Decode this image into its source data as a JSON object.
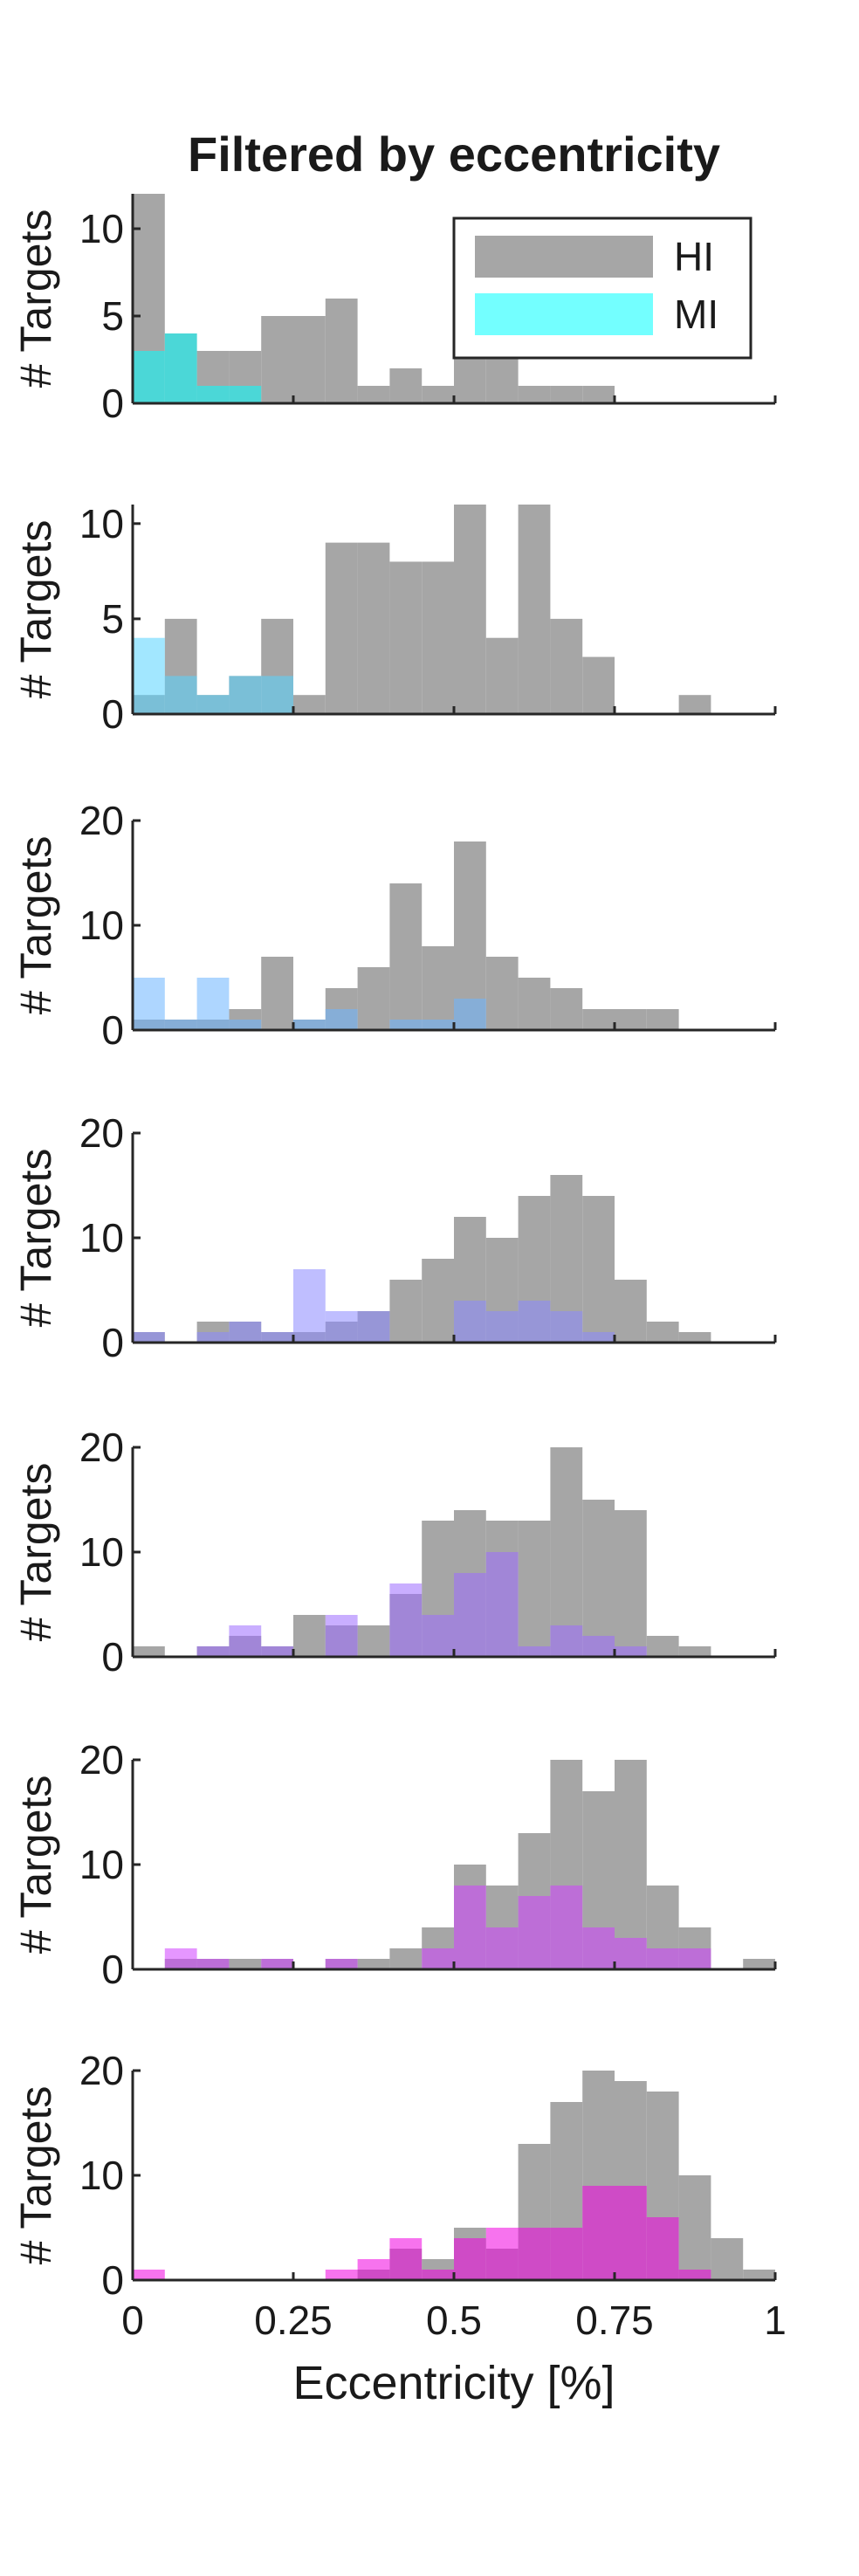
{
  "chart_data": {
    "type": "bar",
    "title": "Filtered by eccentricity",
    "xlabel": "Eccentricity [%]",
    "ylabel": "# Targets",
    "xlim": [
      0,
      1
    ],
    "x_ticks": [
      "0",
      "0.25",
      "0.5",
      "0.75",
      "1"
    ],
    "bin_width": 0.05,
    "bin_starts": [
      0,
      0.05,
      0.1,
      0.15,
      0.2,
      0.25,
      0.3,
      0.35,
      0.4,
      0.45,
      0.5,
      0.55,
      0.6,
      0.65,
      0.7,
      0.75,
      0.8,
      0.85,
      0.9,
      0.95
    ],
    "legend": {
      "position": "top-right",
      "entries": [
        "HI",
        "MI"
      ]
    },
    "hi_color": "#a6a6a6",
    "mi_alpha": 0.55,
    "panels": [
      {
        "ylim": [
          0,
          12
        ],
        "yticks": [
          0,
          5,
          10
        ],
        "mi_color": "#00ffff",
        "series": [
          {
            "name": "HI",
            "values": [
              12,
              4,
              3,
              3,
              5,
              5,
              6,
              1,
              2,
              1,
              3,
              3,
              1,
              1,
              1,
              0,
              0,
              0,
              0,
              0
            ]
          },
          {
            "name": "MI",
            "values": [
              3,
              4,
              1,
              1,
              0,
              0,
              0,
              0,
              0,
              0,
              0,
              0,
              0,
              0,
              0,
              0,
              0,
              0,
              0,
              0
            ]
          }
        ]
      },
      {
        "ylim": [
          0,
          11
        ],
        "yticks": [
          0,
          5,
          10
        ],
        "mi_color": "#55d4ff",
        "series": [
          {
            "name": "HI",
            "values": [
              1,
              5,
              1,
              2,
              5,
              1,
              9,
              9,
              8,
              8,
              11,
              4,
              11,
              5,
              3,
              0,
              0,
              1,
              0,
              0
            ]
          },
          {
            "name": "MI",
            "values": [
              4,
              2,
              1,
              2,
              2,
              0,
              0,
              0,
              0,
              0,
              0,
              0,
              0,
              0,
              0,
              0,
              0,
              0,
              0,
              0
            ]
          }
        ]
      },
      {
        "ylim": [
          0,
          20
        ],
        "yticks": [
          0,
          10,
          20
        ],
        "mi_color": "#6cb4ff",
        "series": [
          {
            "name": "HI",
            "values": [
              1,
              1,
              1,
              2,
              7,
              1,
              4,
              6,
              14,
              8,
              18,
              7,
              5,
              4,
              2,
              2,
              2,
              0,
              0,
              0
            ]
          },
          {
            "name": "MI",
            "values": [
              5,
              1,
              5,
              1,
              0,
              1,
              2,
              0,
              1,
              1,
              3,
              0,
              0,
              0,
              0,
              0,
              0,
              0,
              0,
              0
            ]
          }
        ]
      },
      {
        "ylim": [
          0,
          20
        ],
        "yticks": [
          0,
          10,
          20
        ],
        "mi_color": "#8b88ff",
        "series": [
          {
            "name": "HI",
            "values": [
              1,
              0,
              2,
              2,
              1,
              1,
              2,
              3,
              6,
              8,
              12,
              10,
              14,
              16,
              14,
              6,
              2,
              1,
              0,
              0
            ]
          },
          {
            "name": "MI",
            "values": [
              1,
              0,
              1,
              2,
              1,
              7,
              3,
              3,
              0,
              0,
              4,
              3,
              4,
              3,
              1,
              0,
              0,
              0,
              0,
              0
            ]
          }
        ]
      },
      {
        "ylim": [
          0,
          20
        ],
        "yticks": [
          0,
          10,
          20
        ],
        "mi_color": "#9c6cff",
        "series": [
          {
            "name": "HI",
            "values": [
              1,
              0,
              1,
              2,
              1,
              4,
              3,
              3,
              6,
              13,
              14,
              13,
              13,
              21,
              15,
              14,
              2,
              1,
              0,
              0
            ]
          },
          {
            "name": "MI",
            "values": [
              0,
              0,
              1,
              3,
              1,
              0,
              4,
              0,
              7,
              4,
              8,
              10,
              1,
              3,
              2,
              1,
              0,
              0,
              0,
              0
            ]
          }
        ]
      },
      {
        "ylim": [
          0,
          20
        ],
        "yticks": [
          0,
          10,
          20
        ],
        "mi_color": "#d040ff",
        "series": [
          {
            "name": "HI",
            "values": [
              0,
              1,
              1,
              1,
              1,
              0,
              1,
              1,
              2,
              4,
              10,
              8,
              13,
              21,
              17,
              21,
              8,
              4,
              0,
              1
            ]
          },
          {
            "name": "MI",
            "values": [
              0,
              2,
              1,
              0,
              1,
              0,
              1,
              0,
              0,
              2,
              8,
              4,
              7,
              8,
              4,
              3,
              2,
              2,
              0,
              0
            ]
          }
        ]
      },
      {
        "ylim": [
          0,
          20
        ],
        "yticks": [
          0,
          10,
          20
        ],
        "mi_color": "#f000e0",
        "series": [
          {
            "name": "HI",
            "values": [
              0,
              0,
              0,
              0,
              0,
              0,
              0,
              1,
              3,
              2,
              5,
              3,
              13,
              17,
              20,
              19,
              18,
              10,
              4,
              1
            ]
          },
          {
            "name": "MI",
            "values": [
              1,
              0,
              0,
              0,
              0,
              0,
              1,
              2,
              4,
              1,
              4,
              5,
              5,
              5,
              9,
              9,
              6,
              1,
              0,
              0
            ]
          }
        ]
      }
    ]
  }
}
